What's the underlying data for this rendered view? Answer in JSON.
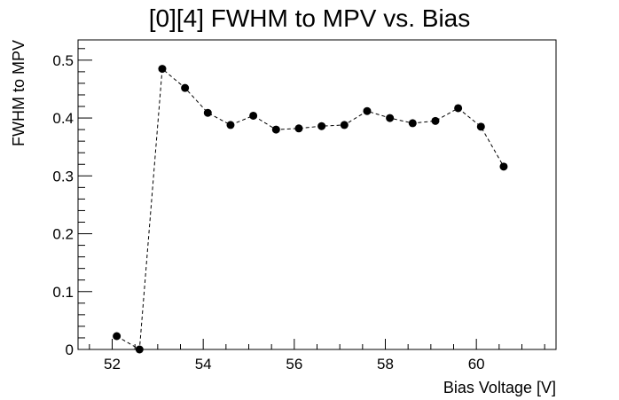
{
  "chart_data": {
    "type": "line",
    "title": "[0][4] FWHM to MPV vs. Bias",
    "xlabel": "Bias Voltage [V]",
    "ylabel": "FWHM to MPV",
    "xlim": [
      51.25,
      61.75
    ],
    "ylim": [
      0,
      0.535
    ],
    "x_ticks": [
      52,
      54,
      56,
      58,
      60
    ],
    "x_tick_labels": [
      "52",
      "54",
      "56",
      "58",
      "60"
    ],
    "y_ticks": [
      0,
      0.1,
      0.2,
      0.3,
      0.4,
      0.5
    ],
    "y_tick_labels": [
      "0",
      "0.1",
      "0.2",
      "0.3",
      "0.4",
      "0.5"
    ],
    "grid": false,
    "series": [
      {
        "style": "dashed line with filled circle markers",
        "color": "#000000",
        "x": [
          52.1,
          52.6,
          53.1,
          53.6,
          54.1,
          54.6,
          55.1,
          55.6,
          56.1,
          56.6,
          57.1,
          57.6,
          58.1,
          58.6,
          59.1,
          59.6,
          60.1,
          60.6
        ],
        "y": [
          0.023,
          0.0,
          0.485,
          0.452,
          0.409,
          0.388,
          0.404,
          0.38,
          0.382,
          0.386,
          0.388,
          0.412,
          0.4,
          0.391,
          0.395,
          0.417,
          0.385,
          0.316
        ]
      }
    ]
  }
}
